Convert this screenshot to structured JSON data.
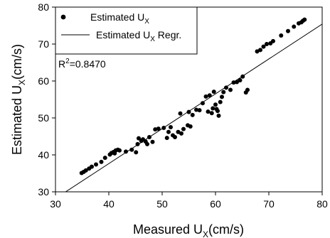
{
  "chart_data": {
    "type": "scatter",
    "xlabel_text": "Measured U",
    "xlabel_sub": "X",
    "xlabel_unit": "(cm/s)",
    "ylabel_text": "Estimated U",
    "ylabel_sub": "X",
    "ylabel_unit": "(cm/s)",
    "xlim": [
      30,
      80
    ],
    "ylim": [
      30,
      80
    ],
    "xticks": [
      30,
      40,
      50,
      60,
      70,
      80
    ],
    "yticks": [
      30,
      40,
      50,
      60,
      70,
      80
    ],
    "grid": false,
    "legend_position": "top-left",
    "annotation": {
      "prefix": "R",
      "sup": "2",
      "rest": "=0.8470"
    },
    "series": [
      {
        "name": "Estimated U",
        "name_sub": "X",
        "name_suffix": "",
        "kind": "points",
        "color": "#000000",
        "points": [
          [
            34.9,
            35.1
          ],
          [
            35.3,
            35.4
          ],
          [
            35.7,
            35.8
          ],
          [
            36.3,
            36.3
          ],
          [
            36.8,
            36.8
          ],
          [
            37.6,
            37.4
          ],
          [
            38.6,
            38.1
          ],
          [
            39.3,
            39.2
          ],
          [
            40.2,
            40.1
          ],
          [
            40.5,
            40.5
          ],
          [
            40.9,
            40.8
          ],
          [
            41.1,
            40.4
          ],
          [
            41.3,
            41.2
          ],
          [
            41.7,
            41.4
          ],
          [
            42.0,
            41.2
          ],
          [
            43.2,
            40.9
          ],
          [
            44.3,
            41.4
          ],
          [
            45.1,
            40.7
          ],
          [
            45.4,
            42.9
          ],
          [
            45.6,
            44.5
          ],
          [
            46.1,
            43.8
          ],
          [
            46.4,
            44.2
          ],
          [
            46.9,
            43.6
          ],
          [
            47.2,
            42.9
          ],
          [
            47.6,
            44.8
          ],
          [
            48.2,
            43.5
          ],
          [
            48.7,
            46.9
          ],
          [
            49.3,
            47.1
          ],
          [
            50.3,
            47.3
          ],
          [
            50.9,
            44.6
          ],
          [
            51.2,
            46.2
          ],
          [
            51.6,
            47.5
          ],
          [
            52.0,
            45.3
          ],
          [
            52.4,
            44.8
          ],
          [
            53.0,
            46.2
          ],
          [
            53.6,
            45.8
          ],
          [
            54.0,
            47.0
          ],
          [
            53.4,
            51.2
          ],
          [
            54.8,
            48.0
          ],
          [
            55.3,
            47.7
          ],
          [
            55.0,
            51.6
          ],
          [
            55.7,
            50.8
          ],
          [
            56.4,
            52.2
          ],
          [
            57.0,
            52.1
          ],
          [
            57.6,
            54.0
          ],
          [
            58.2,
            55.8
          ],
          [
            58.6,
            51.7
          ],
          [
            58.9,
            56.1
          ],
          [
            59.3,
            51.3
          ],
          [
            59.5,
            52.6
          ],
          [
            59.7,
            57.1
          ],
          [
            60.0,
            53.6
          ],
          [
            60.2,
            52.4
          ],
          [
            60.4,
            51.9
          ],
          [
            60.6,
            50.6
          ],
          [
            60.9,
            54.3
          ],
          [
            61.2,
            55.7
          ],
          [
            61.5,
            57.0
          ],
          [
            62.0,
            58.2
          ],
          [
            62.8,
            57.6
          ],
          [
            63.4,
            59.6
          ],
          [
            64.0,
            59.7
          ],
          [
            64.6,
            60.2
          ],
          [
            65.1,
            61.2
          ],
          [
            65.7,
            56.9
          ],
          [
            66.0,
            57.6
          ],
          [
            67.8,
            68.0
          ],
          [
            68.4,
            68.4
          ],
          [
            69.0,
            69.3
          ],
          [
            69.6,
            70.0
          ],
          [
            70.3,
            70.2
          ],
          [
            70.8,
            70.8
          ],
          [
            72.3,
            72.3
          ],
          [
            73.6,
            73.5
          ],
          [
            74.7,
            74.7
          ],
          [
            75.6,
            75.6
          ],
          [
            76.1,
            75.9
          ],
          [
            76.4,
            76.3
          ],
          [
            76.7,
            76.6
          ]
        ]
      },
      {
        "name": "Estimated U",
        "name_sub": "X",
        "name_suffix": " Regr.",
        "kind": "line",
        "color": "#000000",
        "x": [
          30,
          80
        ],
        "y": [
          28.2,
          75.4
        ]
      }
    ]
  }
}
